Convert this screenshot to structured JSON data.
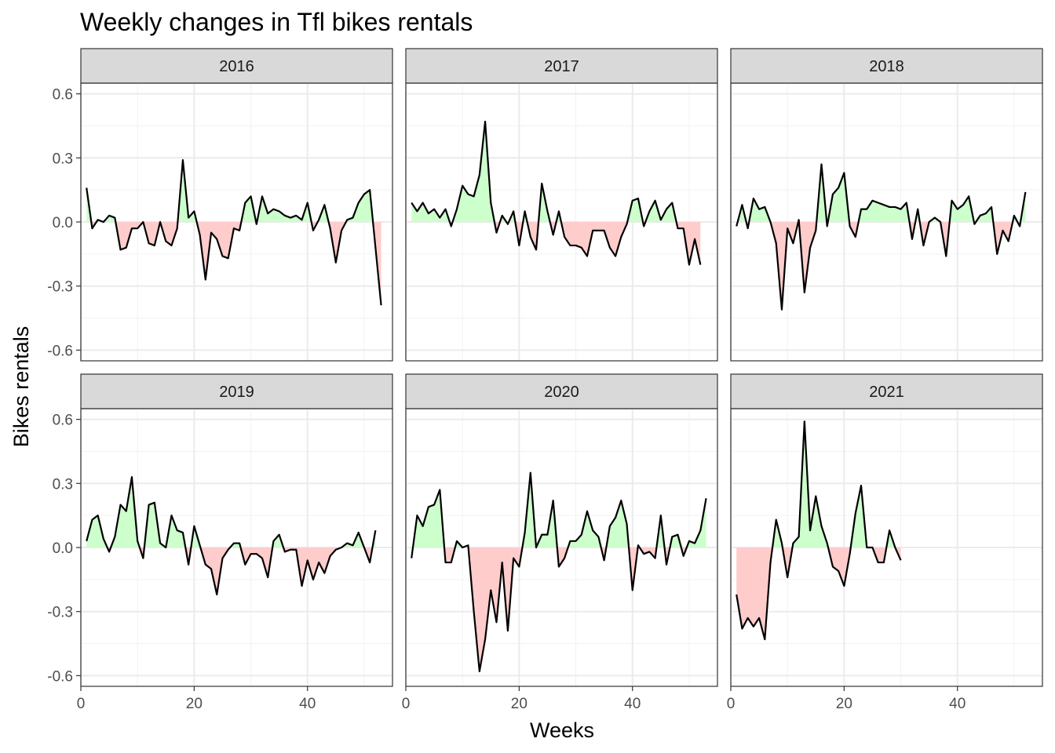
{
  "chart_data": {
    "type": "area",
    "title": "Weekly changes in Tfl bikes rentals",
    "xlabel": "Weeks",
    "ylabel": "Bikes rentals",
    "xlim": [
      0,
      55
    ],
    "ylim": [
      -0.65,
      0.65
    ],
    "x_ticks": [
      0,
      20,
      40
    ],
    "y_ticks": [
      -0.6,
      -0.3,
      0.0,
      0.3,
      0.6
    ],
    "y_tick_labels": [
      "-0.6",
      "-0.3",
      "0.0",
      "0.3",
      "0.6"
    ],
    "x_tick_labels": [
      "0",
      "20",
      "40"
    ],
    "grid": true,
    "legend": "none",
    "colors": {
      "positive_fill": "#ccffcc",
      "negative_fill": "#ffcccc",
      "line": "#000000",
      "strip_background": "#d9d9d9"
    },
    "facets": [
      {
        "name": "2016",
        "x": [
          1,
          2,
          3,
          4,
          5,
          6,
          7,
          8,
          9,
          10,
          11,
          12,
          13,
          14,
          15,
          16,
          17,
          18,
          19,
          20,
          21,
          22,
          23,
          24,
          25,
          26,
          27,
          28,
          29,
          30,
          31,
          32,
          33,
          34,
          35,
          36,
          37,
          38,
          39,
          40,
          41,
          42,
          43,
          44,
          45,
          46,
          47,
          48,
          49,
          50,
          51,
          52,
          53
        ],
        "values": [
          0.16,
          -0.03,
          0.01,
          0.0,
          0.03,
          0.02,
          -0.13,
          -0.12,
          -0.03,
          -0.03,
          0.0,
          -0.1,
          -0.11,
          0.0,
          -0.09,
          -0.11,
          -0.03,
          0.29,
          0.02,
          0.05,
          -0.06,
          -0.27,
          -0.05,
          -0.08,
          -0.16,
          -0.17,
          -0.03,
          -0.04,
          0.09,
          0.12,
          -0.01,
          0.12,
          0.04,
          0.06,
          0.05,
          0.03,
          0.02,
          0.03,
          0.01,
          0.09,
          -0.04,
          0.01,
          0.08,
          -0.03,
          -0.19,
          -0.04,
          0.01,
          0.02,
          0.09,
          0.13,
          0.15,
          -0.12,
          -0.39
        ]
      },
      {
        "name": "2017",
        "x": [
          1,
          2,
          3,
          4,
          5,
          6,
          7,
          8,
          9,
          10,
          11,
          12,
          13,
          14,
          15,
          16,
          17,
          18,
          19,
          20,
          21,
          22,
          23,
          24,
          25,
          26,
          27,
          28,
          29,
          30,
          31,
          32,
          33,
          34,
          35,
          36,
          37,
          38,
          39,
          40,
          41,
          42,
          43,
          44,
          45,
          46,
          47,
          48,
          49,
          50,
          51,
          52
        ],
        "values": [
          0.09,
          0.05,
          0.09,
          0.04,
          0.06,
          0.02,
          0.06,
          -0.02,
          0.06,
          0.17,
          0.13,
          0.12,
          0.22,
          0.47,
          0.09,
          -0.05,
          0.03,
          -0.01,
          0.05,
          -0.11,
          0.05,
          -0.07,
          -0.13,
          0.18,
          0.05,
          -0.06,
          0.05,
          -0.07,
          -0.11,
          -0.11,
          -0.12,
          -0.16,
          -0.04,
          -0.04,
          -0.04,
          -0.12,
          -0.16,
          -0.07,
          -0.01,
          0.1,
          0.11,
          -0.02,
          0.05,
          0.1,
          0.01,
          0.06,
          0.09,
          -0.03,
          -0.03,
          -0.2,
          -0.08,
          -0.2
        ]
      },
      {
        "name": "2018",
        "x": [
          1,
          2,
          3,
          4,
          5,
          6,
          7,
          8,
          9,
          10,
          11,
          12,
          13,
          14,
          15,
          16,
          17,
          18,
          19,
          20,
          21,
          22,
          23,
          24,
          25,
          26,
          27,
          28,
          29,
          30,
          31,
          32,
          33,
          34,
          35,
          36,
          37,
          38,
          39,
          40,
          41,
          42,
          43,
          44,
          45,
          46,
          47,
          48,
          49,
          50,
          51,
          52
        ],
        "values": [
          -0.02,
          0.08,
          -0.03,
          0.11,
          0.06,
          0.07,
          0.0,
          -0.1,
          -0.41,
          -0.03,
          -0.1,
          0.01,
          -0.33,
          -0.12,
          -0.04,
          0.27,
          -0.02,
          0.13,
          0.16,
          0.23,
          -0.02,
          -0.07,
          0.06,
          0.06,
          0.1,
          0.09,
          0.08,
          0.07,
          0.07,
          0.06,
          0.09,
          -0.08,
          0.06,
          -0.11,
          0.0,
          0.02,
          0.0,
          -0.16,
          0.1,
          0.06,
          0.08,
          0.12,
          -0.01,
          0.03,
          0.04,
          0.07,
          -0.15,
          -0.04,
          -0.09,
          0.03,
          -0.02,
          0.14
        ]
      },
      {
        "name": "2019",
        "x": [
          1,
          2,
          3,
          4,
          5,
          6,
          7,
          8,
          9,
          10,
          11,
          12,
          13,
          14,
          15,
          16,
          17,
          18,
          19,
          20,
          21,
          22,
          23,
          24,
          25,
          26,
          27,
          28,
          29,
          30,
          31,
          32,
          33,
          34,
          35,
          36,
          37,
          38,
          39,
          40,
          41,
          42,
          43,
          44,
          45,
          46,
          47,
          48,
          49,
          50,
          51,
          52
        ],
        "values": [
          0.03,
          0.13,
          0.15,
          0.04,
          -0.02,
          0.05,
          0.2,
          0.17,
          0.33,
          0.03,
          -0.05,
          0.2,
          0.21,
          0.02,
          0.0,
          0.15,
          0.08,
          0.07,
          -0.08,
          0.1,
          0.01,
          -0.08,
          -0.1,
          -0.22,
          -0.05,
          -0.01,
          0.02,
          0.02,
          -0.08,
          -0.03,
          -0.03,
          -0.05,
          -0.14,
          0.03,
          0.06,
          -0.02,
          -0.01,
          -0.01,
          -0.18,
          -0.06,
          -0.15,
          -0.07,
          -0.12,
          -0.04,
          -0.01,
          0.0,
          0.02,
          0.01,
          0.07,
          0.0,
          -0.07,
          0.08
        ]
      },
      {
        "name": "2020",
        "x": [
          1,
          2,
          3,
          4,
          5,
          6,
          7,
          8,
          9,
          10,
          11,
          12,
          13,
          14,
          15,
          16,
          17,
          18,
          19,
          20,
          21,
          22,
          23,
          24,
          25,
          26,
          27,
          28,
          29,
          30,
          31,
          32,
          33,
          34,
          35,
          36,
          37,
          38,
          39,
          40,
          41,
          42,
          43,
          44,
          45,
          46,
          47,
          48,
          49,
          50,
          51,
          52,
          53
        ],
        "values": [
          -0.05,
          0.15,
          0.1,
          0.19,
          0.2,
          0.27,
          -0.07,
          -0.07,
          0.03,
          0.0,
          0.01,
          -0.3,
          -0.58,
          -0.43,
          -0.2,
          -0.35,
          -0.07,
          -0.39,
          -0.05,
          -0.09,
          0.07,
          0.35,
          0.0,
          0.06,
          0.06,
          0.22,
          -0.09,
          -0.05,
          0.03,
          0.03,
          0.06,
          0.17,
          0.08,
          0.05,
          -0.06,
          0.1,
          0.14,
          0.22,
          0.11,
          -0.2,
          0.01,
          -0.03,
          -0.02,
          -0.05,
          0.15,
          -0.08,
          0.05,
          0.06,
          -0.04,
          0.03,
          0.02,
          0.08,
          0.23
        ]
      },
      {
        "name": "2021",
        "x": [
          1,
          2,
          3,
          4,
          5,
          6,
          7,
          8,
          9,
          10,
          11,
          12,
          13,
          14,
          15,
          16,
          17,
          18,
          19,
          20,
          21,
          22,
          23,
          24,
          25,
          26,
          27,
          28,
          29,
          30
        ],
        "values": [
          -0.22,
          -0.38,
          -0.33,
          -0.37,
          -0.33,
          -0.43,
          -0.07,
          0.13,
          0.02,
          -0.14,
          0.02,
          0.05,
          0.59,
          0.08,
          0.24,
          0.1,
          0.02,
          -0.09,
          -0.11,
          -0.18,
          -0.03,
          0.16,
          0.29,
          0.0,
          0.0,
          -0.07,
          -0.07,
          0.08,
          0.0,
          -0.06
        ]
      }
    ]
  }
}
